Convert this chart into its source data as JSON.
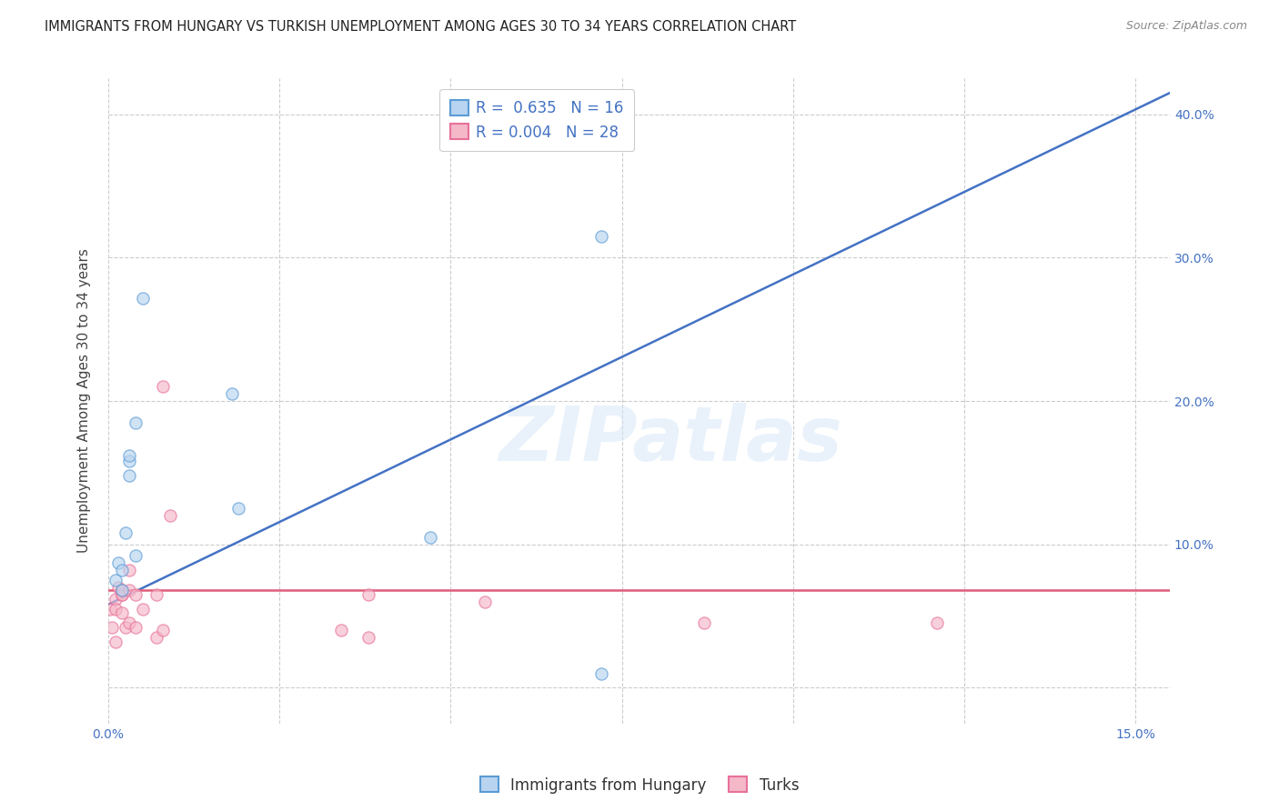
{
  "title": "IMMIGRANTS FROM HUNGARY VS TURKISH UNEMPLOYMENT AMONG AGES 30 TO 34 YEARS CORRELATION CHART",
  "source": "Source: ZipAtlas.com",
  "ylabel": "Unemployment Among Ages 30 to 34 years",
  "xlim": [
    0.0,
    0.155
  ],
  "ylim": [
    -0.025,
    0.425
  ],
  "ytick_vals": [
    0.0,
    0.1,
    0.2,
    0.3,
    0.4
  ],
  "ytick_labels_right": [
    "",
    "10.0%",
    "20.0%",
    "30.0%",
    "40.0%"
  ],
  "xtick_vals": [
    0.0,
    0.025,
    0.05,
    0.075,
    0.1,
    0.125,
    0.15
  ],
  "xtick_labels": [
    "0.0%",
    "",
    "",
    "",
    "",
    "",
    "15.0%"
  ],
  "blue_x": [
    0.001,
    0.0015,
    0.002,
    0.002,
    0.0025,
    0.003,
    0.003,
    0.003,
    0.004,
    0.004,
    0.005,
    0.018,
    0.019,
    0.047,
    0.072,
    0.072
  ],
  "blue_y": [
    0.075,
    0.087,
    0.082,
    0.068,
    0.108,
    0.148,
    0.158,
    0.162,
    0.185,
    0.092,
    0.272,
    0.205,
    0.125,
    0.105,
    0.315,
    0.01
  ],
  "pink_x": [
    0.0003,
    0.0005,
    0.001,
    0.001,
    0.001,
    0.0015,
    0.002,
    0.002,
    0.002,
    0.002,
    0.0025,
    0.003,
    0.003,
    0.003,
    0.004,
    0.004,
    0.005,
    0.007,
    0.007,
    0.008,
    0.008,
    0.009,
    0.034,
    0.038,
    0.038,
    0.055,
    0.087,
    0.121
  ],
  "pink_y": [
    0.055,
    0.042,
    0.032,
    0.062,
    0.055,
    0.07,
    0.065,
    0.065,
    0.068,
    0.052,
    0.042,
    0.045,
    0.068,
    0.082,
    0.065,
    0.042,
    0.055,
    0.035,
    0.065,
    0.21,
    0.04,
    0.12,
    0.04,
    0.035,
    0.065,
    0.06,
    0.045,
    0.045
  ],
  "blue_trend_x0": 0.0,
  "blue_trend_y0": 0.058,
  "blue_trend_x1": 0.155,
  "blue_trend_y1": 0.415,
  "pink_trend_x0": 0.0,
  "pink_trend_y0": 0.068,
  "pink_trend_x1": 0.155,
  "pink_trend_y1": 0.068,
  "R_blue": 0.635,
  "N_blue": 16,
  "R_pink": 0.004,
  "N_pink": 28,
  "blue_fill_color": "#B8D4F0",
  "blue_edge_color": "#5B9BD5",
  "pink_fill_color": "#F4B8C8",
  "pink_edge_color": "#E8719A",
  "blue_trend_color": "#4472C4",
  "pink_trend_color": "#E05C7A",
  "legend_blue_label": "Immigrants from Hungary",
  "legend_pink_label": "Turks",
  "watermark_text": "ZIPatlas",
  "background_color": "#FFFFFF",
  "grid_color": "#CCCCCC",
  "title_fontsize": 10.5,
  "axis_label_fontsize": 11,
  "tick_fontsize": 10,
  "legend_fontsize": 12,
  "marker_size": 90,
  "marker_alpha": 0.65,
  "marker_linewidth": 1.0
}
